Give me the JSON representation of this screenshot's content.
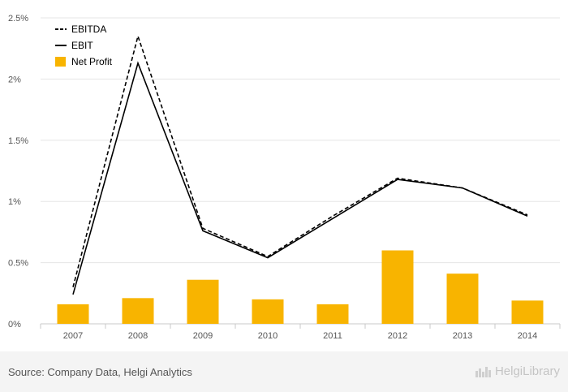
{
  "chart_data": {
    "type": "bar",
    "categories": [
      "2007",
      "2008",
      "2009",
      "2010",
      "2011",
      "2012",
      "2013",
      "2014"
    ],
    "series": [
      {
        "name": "EBITDA",
        "kind": "line",
        "style": "dashed",
        "color": "#000000",
        "values": [
          0.3,
          2.35,
          0.78,
          0.55,
          0.88,
          1.19,
          1.11,
          0.89
        ]
      },
      {
        "name": "EBIT",
        "kind": "line",
        "style": "solid",
        "color": "#000000",
        "values": [
          0.24,
          2.13,
          0.76,
          0.54,
          0.86,
          1.18,
          1.11,
          0.88
        ]
      },
      {
        "name": "Net Profit",
        "kind": "bar",
        "color": "#f8b400",
        "values": [
          0.16,
          0.21,
          0.36,
          0.2,
          0.16,
          0.6,
          0.41,
          0.19
        ]
      }
    ],
    "y_ticks": [
      "0%",
      "0.5%",
      "1%",
      "1.5%",
      "2%",
      "2.5%"
    ],
    "ylim": [
      0,
      2.5
    ],
    "grid": true,
    "legend_position": "top-left"
  },
  "footer": {
    "source": "Source: Company Data, Helgi Analytics",
    "logo_text": "HelgiLibrary",
    "logo_icon": "city-skyline-icon"
  }
}
